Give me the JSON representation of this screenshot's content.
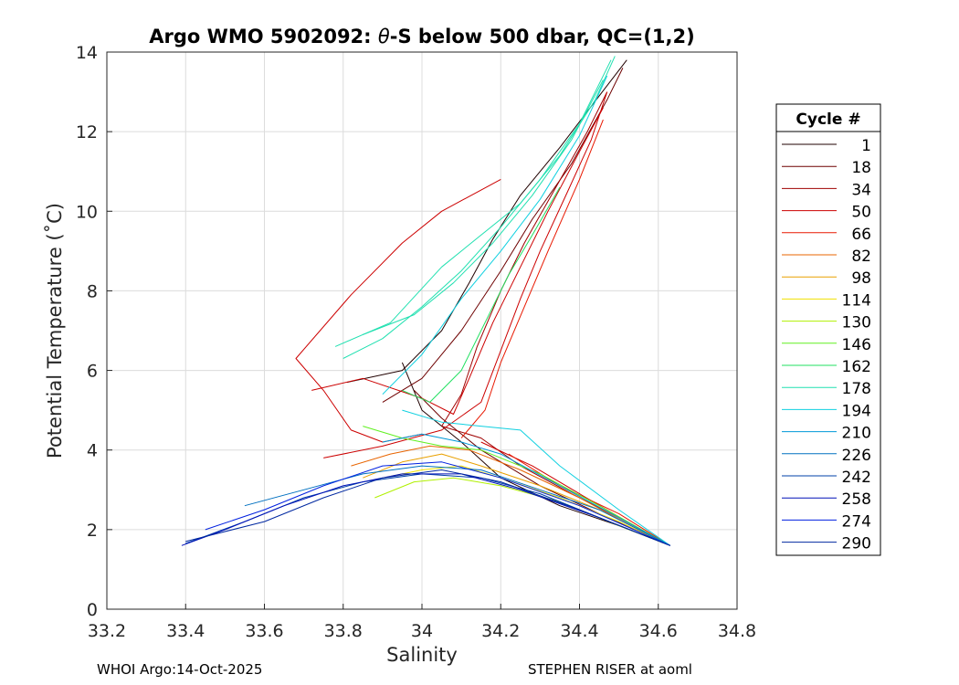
{
  "chart_data": {
    "type": "line",
    "title_parts": [
      "Argo WMO 5902092: ",
      "θ",
      "-S below 500 dbar,  QC=(1,2)"
    ],
    "xlabel": "Salinity",
    "ylabel": "Potential Temperature (˚C)",
    "xlim": [
      33.2,
      34.8
    ],
    "ylim": [
      0,
      14
    ],
    "xticks": [
      "33.2",
      "33.4",
      "33.6",
      "33.8",
      "34",
      "34.2",
      "34.4",
      "34.6",
      "34.8"
    ],
    "yticks": [
      "0",
      "2",
      "4",
      "6",
      "8",
      "10",
      "12",
      "14"
    ],
    "grid": true,
    "legend": {
      "title": "Cycle #",
      "placement": "outside-right",
      "entries": [
        {
          "label": "1",
          "color": "#200000"
        },
        {
          "label": "18",
          "color": "#6e0000"
        },
        {
          "label": "34",
          "color": "#9e0000"
        },
        {
          "label": "50",
          "color": "#cc0000"
        },
        {
          "label": "66",
          "color": "#e81800"
        },
        {
          "label": "82",
          "color": "#e86400"
        },
        {
          "label": "98",
          "color": "#e8a000"
        },
        {
          "label": "114",
          "color": "#f0e000"
        },
        {
          "label": "130",
          "color": "#b0f000"
        },
        {
          "label": "146",
          "color": "#60f020"
        },
        {
          "label": "162",
          "color": "#20e060"
        },
        {
          "label": "178",
          "color": "#20e0b0"
        },
        {
          "label": "194",
          "color": "#10d0e0"
        },
        {
          "label": "210",
          "color": "#0098d8"
        },
        {
          "label": "226",
          "color": "#0070c0"
        },
        {
          "label": "242",
          "color": "#0040a8"
        },
        {
          "label": "258",
          "color": "#0010b8"
        },
        {
          "label": "274",
          "color": "#0020e0"
        },
        {
          "label": "290",
          "color": "#0028a0"
        }
      ]
    },
    "series": [
      {
        "name": "1",
        "color": "#200000",
        "points": [
          [
            33.81,
            5.7
          ],
          [
            33.95,
            6.0
          ],
          [
            34.05,
            7.0
          ],
          [
            34.12,
            8.2
          ],
          [
            34.18,
            9.3
          ],
          [
            34.25,
            10.4
          ],
          [
            34.35,
            11.6
          ],
          [
            34.45,
            12.9
          ],
          [
            34.52,
            13.8
          ]
        ]
      },
      {
        "name": "1b",
        "color": "#200000",
        "points": [
          [
            34.63,
            1.6
          ],
          [
            34.5,
            2.1
          ],
          [
            34.35,
            2.6
          ],
          [
            34.2,
            3.3
          ],
          [
            34.1,
            4.2
          ],
          [
            34.0,
            5.0
          ],
          [
            33.95,
            6.2
          ]
        ]
      },
      {
        "name": "18",
        "color": "#6e0000",
        "points": [
          [
            33.9,
            5.2
          ],
          [
            34.0,
            5.8
          ],
          [
            34.1,
            7.0
          ],
          [
            34.2,
            8.5
          ],
          [
            34.28,
            9.8
          ],
          [
            34.38,
            11.2
          ],
          [
            34.47,
            12.8
          ],
          [
            34.51,
            13.6
          ]
        ]
      },
      {
        "name": "18b",
        "color": "#6e0000",
        "points": [
          [
            34.63,
            1.6
          ],
          [
            34.45,
            2.4
          ],
          [
            34.3,
            3.1
          ],
          [
            34.15,
            4.0
          ],
          [
            34.05,
            4.8
          ],
          [
            33.98,
            5.5
          ]
        ]
      },
      {
        "name": "34",
        "color": "#9e0000",
        "points": [
          [
            34.05,
            4.6
          ],
          [
            34.1,
            5.4
          ],
          [
            34.14,
            6.6
          ],
          [
            34.2,
            8.0
          ],
          [
            34.26,
            9.2
          ],
          [
            34.34,
            10.6
          ],
          [
            34.42,
            12.0
          ],
          [
            34.47,
            13.0
          ]
        ]
      },
      {
        "name": "34b",
        "color": "#9e0000",
        "points": [
          [
            34.63,
            1.6
          ],
          [
            34.5,
            2.3
          ],
          [
            34.38,
            2.9
          ],
          [
            34.25,
            3.6
          ],
          [
            34.15,
            4.3
          ],
          [
            34.05,
            4.6
          ]
        ]
      },
      {
        "name": "50",
        "color": "#cc0000",
        "points": [
          [
            33.75,
            3.8
          ],
          [
            33.9,
            4.1
          ],
          [
            34.05,
            4.5
          ],
          [
            34.15,
            5.2
          ],
          [
            34.2,
            6.5
          ],
          [
            34.25,
            7.8
          ],
          [
            34.3,
            9.0
          ],
          [
            34.37,
            10.5
          ],
          [
            34.43,
            11.8
          ],
          [
            34.47,
            13.0
          ]
        ]
      },
      {
        "name": "50b",
        "color": "#cc0000",
        "points": [
          [
            34.63,
            1.6
          ],
          [
            34.52,
            2.2
          ],
          [
            34.4,
            2.9
          ],
          [
            34.28,
            3.6
          ],
          [
            34.15,
            4.2
          ]
        ]
      },
      {
        "name": "50c",
        "color": "#cc0000",
        "points": [
          [
            33.72,
            5.5
          ],
          [
            33.85,
            5.8
          ],
          [
            34.0,
            5.3
          ],
          [
            34.08,
            4.9
          ],
          [
            34.12,
            5.8
          ],
          [
            34.18,
            7.2
          ],
          [
            34.25,
            8.6
          ],
          [
            34.32,
            10.0
          ],
          [
            34.4,
            11.5
          ],
          [
            34.46,
            12.6
          ]
        ]
      },
      {
        "name": "50d",
        "color": "#cc0000",
        "points": [
          [
            34.2,
            10.8
          ],
          [
            34.05,
            10.0
          ],
          [
            33.95,
            9.2
          ],
          [
            33.82,
            7.9
          ],
          [
            33.68,
            6.3
          ],
          [
            33.75,
            5.5
          ],
          [
            33.82,
            4.5
          ],
          [
            33.9,
            4.2
          ],
          [
            34.0,
            4.4
          ]
        ]
      },
      {
        "name": "66",
        "color": "#e81800",
        "points": [
          [
            34.1,
            4.3
          ],
          [
            34.16,
            5.0
          ],
          [
            34.2,
            6.2
          ],
          [
            34.26,
            7.6
          ],
          [
            34.32,
            9.0
          ],
          [
            34.4,
            10.8
          ],
          [
            34.46,
            12.3
          ]
        ]
      },
      {
        "name": "66b",
        "color": "#e81800",
        "points": [
          [
            34.63,
            1.6
          ],
          [
            34.5,
            2.4
          ],
          [
            34.35,
            3.1
          ],
          [
            34.22,
            3.9
          ]
        ]
      },
      {
        "name": "82",
        "color": "#e86400",
        "points": [
          [
            33.82,
            3.6
          ],
          [
            33.92,
            3.9
          ],
          [
            34.02,
            4.1
          ],
          [
            34.12,
            4.0
          ],
          [
            34.25,
            3.5
          ],
          [
            34.4,
            2.8
          ],
          [
            34.55,
            2.0
          ],
          [
            34.63,
            1.6
          ]
        ]
      },
      {
        "name": "98",
        "color": "#e8a000",
        "points": [
          [
            33.85,
            3.3
          ],
          [
            33.95,
            3.7
          ],
          [
            34.05,
            3.9
          ],
          [
            34.15,
            3.6
          ],
          [
            34.3,
            3.1
          ],
          [
            34.45,
            2.5
          ],
          [
            34.63,
            1.6
          ]
        ]
      },
      {
        "name": "114",
        "color": "#f0e000",
        "points": [
          [
            33.9,
            3.3
          ],
          [
            34.0,
            3.5
          ],
          [
            34.1,
            3.6
          ],
          [
            34.2,
            3.3
          ],
          [
            34.35,
            2.8
          ],
          [
            34.5,
            2.2
          ],
          [
            34.63,
            1.6
          ]
        ]
      },
      {
        "name": "130",
        "color": "#b0f000",
        "points": [
          [
            33.88,
            2.8
          ],
          [
            33.98,
            3.2
          ],
          [
            34.08,
            3.3
          ],
          [
            34.2,
            3.1
          ],
          [
            34.35,
            2.7
          ],
          [
            34.5,
            2.1
          ],
          [
            34.63,
            1.6
          ]
        ]
      },
      {
        "name": "146",
        "color": "#60f020",
        "points": [
          [
            33.85,
            4.6
          ],
          [
            33.95,
            4.3
          ],
          [
            34.05,
            4.1
          ],
          [
            34.15,
            4.0
          ],
          [
            34.3,
            3.4
          ],
          [
            34.45,
            2.6
          ],
          [
            34.63,
            1.6
          ]
        ]
      },
      {
        "name": "162",
        "color": "#20e060",
        "points": [
          [
            33.95,
            5.5
          ],
          [
            34.02,
            5.2
          ],
          [
            34.1,
            6.0
          ],
          [
            34.16,
            7.2
          ],
          [
            34.22,
            8.4
          ],
          [
            34.28,
            9.4
          ],
          [
            34.35,
            10.6
          ]
        ]
      },
      {
        "name": "178",
        "color": "#20e0b0",
        "points": [
          [
            33.8,
            6.3
          ],
          [
            33.9,
            6.8
          ],
          [
            34.0,
            7.6
          ],
          [
            34.1,
            8.5
          ],
          [
            34.2,
            9.6
          ],
          [
            34.3,
            10.8
          ],
          [
            34.4,
            12.2
          ],
          [
            34.48,
            13.8
          ]
        ]
      },
      {
        "name": "178b",
        "color": "#20e0b0",
        "points": [
          [
            33.85,
            6.9
          ],
          [
            33.98,
            7.4
          ],
          [
            34.08,
            8.2
          ],
          [
            34.18,
            9.2
          ],
          [
            34.28,
            10.4
          ],
          [
            34.38,
            11.8
          ],
          [
            34.46,
            13.3
          ]
        ]
      },
      {
        "name": "178c",
        "color": "#20e0b0",
        "points": [
          [
            33.78,
            6.6
          ],
          [
            33.92,
            7.2
          ],
          [
            34.05,
            8.6
          ],
          [
            34.15,
            9.4
          ],
          [
            34.25,
            10.2
          ],
          [
            34.35,
            11.4
          ],
          [
            34.44,
            12.8
          ],
          [
            34.49,
            13.9
          ]
        ]
      },
      {
        "name": "194",
        "color": "#10d0e0",
        "points": [
          [
            33.9,
            5.4
          ],
          [
            34.0,
            6.4
          ],
          [
            34.1,
            7.8
          ],
          [
            34.2,
            9.0
          ],
          [
            34.3,
            10.3
          ],
          [
            34.4,
            11.9
          ],
          [
            34.47,
            13.4
          ]
        ]
      },
      {
        "name": "194b",
        "color": "#10d0e0",
        "points": [
          [
            33.95,
            5.0
          ],
          [
            34.05,
            4.7
          ],
          [
            34.15,
            4.6
          ],
          [
            34.25,
            4.5
          ],
          [
            34.35,
            3.6
          ],
          [
            34.5,
            2.5
          ],
          [
            34.63,
            1.6
          ]
        ]
      },
      {
        "name": "210",
        "color": "#0098d8",
        "points": [
          [
            33.9,
            4.2
          ],
          [
            34.0,
            4.4
          ],
          [
            34.1,
            4.2
          ],
          [
            34.2,
            3.9
          ],
          [
            34.35,
            3.1
          ],
          [
            34.5,
            2.3
          ],
          [
            34.63,
            1.6
          ]
        ]
      },
      {
        "name": "226",
        "color": "#0070c0",
        "points": [
          [
            33.55,
            2.6
          ],
          [
            33.7,
            3.0
          ],
          [
            33.85,
            3.4
          ],
          [
            34.0,
            3.6
          ],
          [
            34.15,
            3.5
          ],
          [
            34.3,
            3.0
          ],
          [
            34.45,
            2.5
          ],
          [
            34.63,
            1.6
          ]
        ]
      },
      {
        "name": "242",
        "color": "#0040a8",
        "points": [
          [
            33.4,
            1.65
          ],
          [
            33.55,
            2.2
          ],
          [
            33.7,
            2.8
          ],
          [
            33.85,
            3.2
          ],
          [
            34.0,
            3.4
          ],
          [
            34.15,
            3.3
          ],
          [
            34.3,
            2.9
          ],
          [
            34.45,
            2.3
          ],
          [
            34.63,
            1.6
          ]
        ]
      },
      {
        "name": "258",
        "color": "#0010b8",
        "points": [
          [
            33.39,
            1.6
          ],
          [
            33.5,
            2.0
          ],
          [
            33.65,
            2.6
          ],
          [
            33.8,
            3.1
          ],
          [
            33.95,
            3.4
          ],
          [
            34.1,
            3.4
          ],
          [
            34.25,
            3.0
          ],
          [
            34.45,
            2.3
          ],
          [
            34.63,
            1.6
          ]
        ]
      },
      {
        "name": "274",
        "color": "#0020e0",
        "points": [
          [
            33.45,
            2.0
          ],
          [
            33.6,
            2.5
          ],
          [
            33.75,
            3.1
          ],
          [
            33.9,
            3.6
          ],
          [
            34.05,
            3.7
          ],
          [
            34.2,
            3.3
          ],
          [
            34.4,
            2.6
          ],
          [
            34.63,
            1.6
          ]
        ]
      },
      {
        "name": "290",
        "color": "#0028a0",
        "points": [
          [
            33.4,
            1.7
          ],
          [
            33.6,
            2.2
          ],
          [
            33.75,
            2.8
          ],
          [
            33.9,
            3.3
          ],
          [
            34.05,
            3.5
          ],
          [
            34.2,
            3.2
          ],
          [
            34.4,
            2.5
          ],
          [
            34.63,
            1.6
          ]
        ]
      }
    ]
  },
  "footer": {
    "left": "WHOI Argo:14-Oct-2025",
    "right": "STEPHEN RISER at aoml"
  }
}
